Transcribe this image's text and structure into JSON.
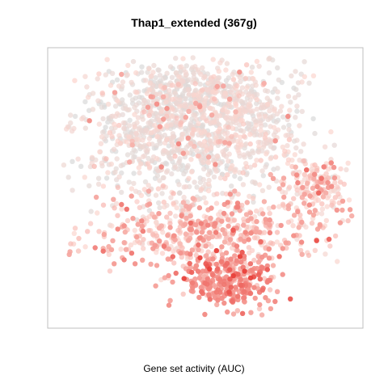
{
  "chart_data": {
    "type": "scatter",
    "title": "Thap1_extended (367g)",
    "xlabel": "Gene set activity (AUC)",
    "ylabel": "",
    "grid": false,
    "legend": "none",
    "color_scale": {
      "low": "#d9d9d9",
      "mid": "#fcd5ce",
      "high": "#e8403a"
    },
    "xlim": [
      0,
      100
    ],
    "ylim": [
      0,
      100
    ],
    "n_points": 2600,
    "seed": 20240521,
    "clusters": [
      {
        "name": "upper-left lobe",
        "cx": 33,
        "cy": 70,
        "sx": 13,
        "sy": 14,
        "n": 700,
        "mean_activity": 0.15
      },
      {
        "name": "upper-right lobe",
        "cx": 58,
        "cy": 74,
        "sx": 12,
        "sy": 12,
        "n": 640,
        "mean_activity": 0.17
      },
      {
        "name": "top cap",
        "cx": 44,
        "cy": 86,
        "sx": 11,
        "sy": 5,
        "n": 220,
        "mean_activity": 0.13
      },
      {
        "name": "right side arm",
        "cx": 86,
        "cy": 51,
        "sx": 6,
        "sy": 6,
        "n": 180,
        "mean_activity": 0.38
      },
      {
        "name": "lower band",
        "cx": 50,
        "cy": 33,
        "sx": 20,
        "sy": 7,
        "n": 560,
        "mean_activity": 0.45
      },
      {
        "name": "bottom lobe",
        "cx": 57,
        "cy": 14,
        "sx": 8,
        "sy": 6,
        "n": 300,
        "mean_activity": 0.62
      }
    ]
  }
}
